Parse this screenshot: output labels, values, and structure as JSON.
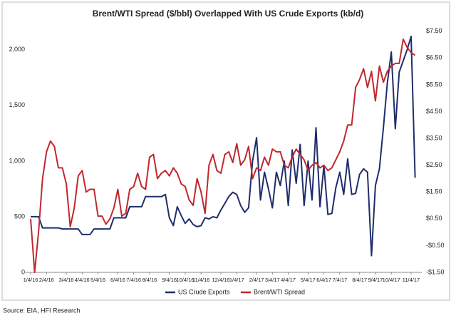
{
  "chart_data": {
    "type": "line",
    "title": "Brent/WTI Spread ($/bbl) Overlapped With US Crude Exports (kb/d)",
    "source": "Source: EIA, HFI Research",
    "categories": [
      "1/4/16",
      null,
      null,
      null,
      "2/4/16",
      null,
      null,
      null,
      null,
      "3/4/16",
      null,
      null,
      null,
      "4/4/16",
      null,
      null,
      null,
      "5/4/16",
      null,
      null,
      null,
      null,
      "6/4/16",
      null,
      null,
      null,
      "7/4/16",
      null,
      null,
      null,
      "8/4/16",
      null,
      null,
      null,
      null,
      "9/4/16",
      null,
      null,
      null,
      "10/4/16",
      null,
      null,
      null,
      "11/4/16",
      null,
      null,
      null,
      null,
      "12/4/16",
      null,
      null,
      null,
      "1/4/17",
      null,
      null,
      null,
      null,
      "2/4/17",
      null,
      null,
      null,
      "3/4/17",
      null,
      null,
      null,
      "4/4/17",
      null,
      null,
      null,
      null,
      "5/4/17",
      null,
      null,
      null,
      "6/4/17",
      null,
      null,
      null,
      "7/4/17",
      null,
      null,
      null,
      null,
      "8/4/17",
      null,
      null,
      null,
      "9/4/17",
      null,
      null,
      null,
      "10/4/17",
      null,
      null,
      null,
      null,
      "11/4/17",
      null
    ],
    "series": [
      {
        "name": "US Crude Exports",
        "color": "#1f2d6b",
        "axis": "y",
        "values": [
          500,
          500,
          500,
          400,
          400,
          400,
          400,
          400,
          390,
          390,
          390,
          390,
          390,
          340,
          340,
          340,
          390,
          390,
          390,
          390,
          390,
          490,
          490,
          490,
          490,
          590,
          590,
          590,
          590,
          680,
          680,
          680,
          680,
          680,
          700,
          490,
          420,
          590,
          510,
          440,
          480,
          430,
          410,
          420,
          490,
          480,
          500,
          490,
          560,
          620,
          680,
          720,
          700,
          600,
          540,
          580,
          1000,
          1210,
          650,
          900,
          750,
          580,
          900,
          780,
          1000,
          600,
          1100,
          800,
          1150,
          600,
          1000,
          650,
          1300,
          590,
          960,
          520,
          530,
          760,
          900,
          700,
          1020,
          700,
          710,
          880,
          930,
          900,
          150,
          780,
          930,
          1300,
          1700,
          1980,
          1290,
          1800,
          1900,
          2000,
          2120,
          850
        ]
      },
      {
        "name": "Brent/WTI Spread",
        "color": "#c0272d",
        "axis": "y2",
        "values": [
          0.5,
          -1.5,
          0.0,
          2.0,
          3.0,
          3.4,
          3.2,
          2.4,
          2.4,
          1.8,
          0.2,
          0.9,
          2.1,
          2.3,
          1.5,
          1.6,
          1.6,
          0.6,
          0.6,
          0.3,
          0.5,
          0.9,
          1.6,
          0.6,
          0.7,
          1.6,
          1.7,
          2.2,
          1.7,
          1.6,
          2.8,
          2.9,
          2.0,
          2.2,
          2.3,
          2.1,
          2.4,
          2.2,
          1.8,
          1.7,
          1.2,
          1.0,
          2.0,
          1.5,
          0.7,
          2.5,
          2.9,
          2.3,
          2.2,
          2.9,
          3.0,
          2.6,
          3.3,
          2.5,
          2.7,
          3.2,
          2.0,
          2.4,
          2.3,
          2.8,
          2.5,
          3.1,
          3.0,
          3.0,
          2.5,
          2.4,
          2.8,
          3.1,
          2.9,
          2.7,
          2.3,
          2.5,
          2.6,
          2.4,
          2.5,
          2.3,
          2.4,
          2.7,
          3.0,
          3.4,
          4.0,
          4.0,
          5.4,
          5.7,
          6.1,
          5.4,
          6.0,
          4.9,
          6.2,
          5.6,
          6.0,
          6.2,
          6.3,
          6.3,
          7.2,
          6.9,
          6.7,
          6.6
        ]
      }
    ],
    "ylim": [
      0,
      2210
    ],
    "yticks": [
      0,
      500,
      {
        "value": 1000,
        "label": "1,000"
      },
      {
        "value": 1500,
        "label": "1,500"
      },
      {
        "value": 2000,
        "label": "2,000"
      }
    ],
    "y2lim": [
      -1.5,
      7.68
    ],
    "y2ticks": [
      {
        "value": -1.5,
        "label": "-$1.50"
      },
      {
        "value": -0.5,
        "label": "-$0.50"
      },
      {
        "value": 0.5,
        "label": "$0.50"
      },
      {
        "value": 1.5,
        "label": "$1.50"
      },
      {
        "value": 2.5,
        "label": "$2.50"
      },
      {
        "value": 3.5,
        "label": "$3.50"
      },
      {
        "value": 4.5,
        "label": "$4.50"
      },
      {
        "value": 5.5,
        "label": "$5.50"
      },
      {
        "value": 6.5,
        "label": "$6.50"
      },
      {
        "value": 7.5,
        "label": "$7.50"
      }
    ],
    "grid": false,
    "legend": "bottom"
  }
}
